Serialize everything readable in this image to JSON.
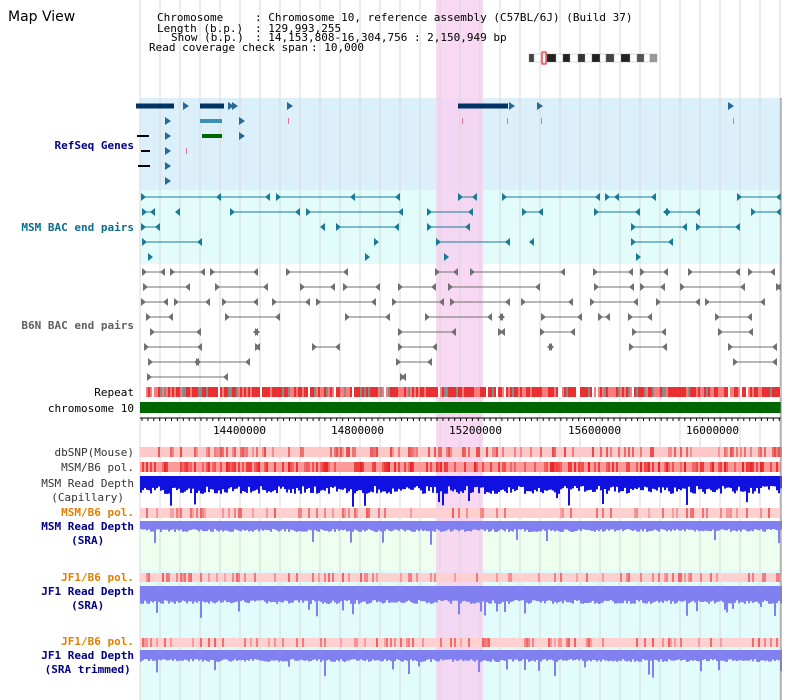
{
  "title": "Map View",
  "info": {
    "chromosome_key": "Chromosome",
    "chromosome_val": ": Chromosome 10, reference assembly (C57BL/6J) (Build 37)",
    "length_key": "Length (b.p.)",
    "length_val": ": 129,993,255",
    "show_key": "Show (b.p.)",
    "show_val": ": 14,153,808-16,304,756 : 2,150,949 bp",
    "coverage_key": "Read coverage check span",
    "coverage_val": ": 10,000"
  },
  "tracks": {
    "refseq": "RefSeq Genes",
    "msm_bac": "MSM BAC end pairs",
    "b6n_bac": "B6N BAC end pairs",
    "repeat": "Repeat",
    "chromosome": "chromosome 10",
    "dbsnp": "dbSNP(Mouse)",
    "msm_pol": "MSM/B6 pol.",
    "msm_depth_cap_1": "MSM Read Depth",
    "msm_depth_cap_2": "(Capillary)",
    "msm_pol2": "MSM/B6 pol.",
    "msm_depth_sra_1": "MSM Read Depth",
    "msm_depth_sra_2": "(SRA)",
    "jf1_pol": "JF1/B6 pol.",
    "jf1_depth_sra_1": "JF1 Read Depth",
    "jf1_depth_sra_2": "(SRA)",
    "jf1_pol2": "JF1/B6 pol.",
    "jf1_depth_trim_1": "JF1 Read Depth",
    "jf1_depth_trim_2": "(SRA trimmed)"
  },
  "axis_ticks": [
    "14400000",
    "14800000",
    "15200000",
    "15600000",
    "16000000"
  ],
  "colors": {
    "refseq_bg": "#dbf0fa",
    "msm_bg": "#e2fcfc",
    "b6n_bg": "#ffffff",
    "depth_bg": "#eefff0",
    "highlight": "#f7d1f1",
    "chromosome": "#006600",
    "repeat": "#e83030",
    "capillary_depth": "#1010e0",
    "sra_depth": "#8080f0",
    "refseq_label": "#000080",
    "msm_bac_label": "#0b6e8e",
    "b6n_bac_label": "#606060",
    "pol_label_orange": "#e08000",
    "depth_label_blue": "#000080"
  }
}
